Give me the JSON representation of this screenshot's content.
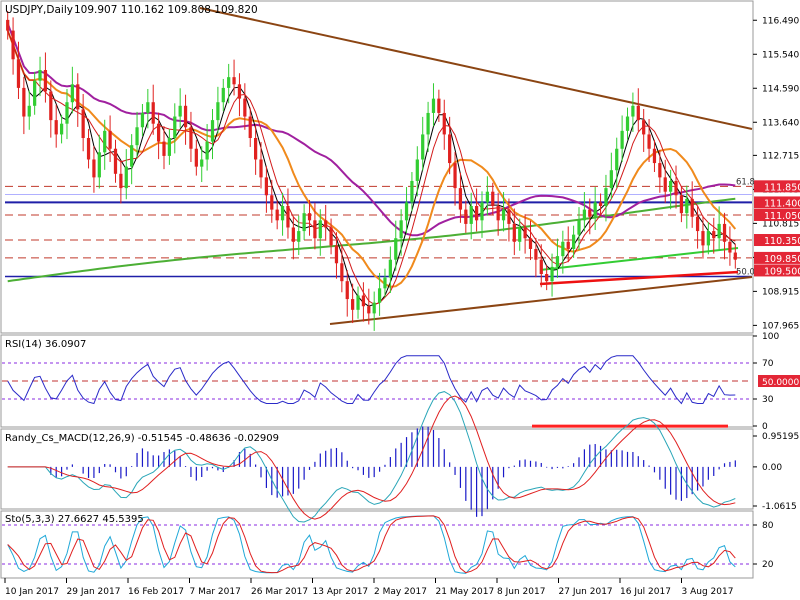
{
  "chart_data": [
    {
      "type": "candlestick",
      "symbol_title": "USDJPY,Daily",
      "ohlc_text": "109.907 110.162 109.808 109.820",
      "ohlc": {
        "open": 109.907,
        "high": 110.162,
        "low": 109.808,
        "close": 109.82
      },
      "x_ticks": [
        "10 Jan 2017",
        "29 Jan 2017",
        "16 Feb 2017",
        "7 Mar 2017",
        "26 Mar 2017",
        "13 Apr 2017",
        "2 May 2017",
        "21 May 2017",
        "8 Jun 2017",
        "27 Jun 2017",
        "16 Jul 2017",
        "3 Aug 2017"
      ],
      "y_ticks": [
        "116.490",
        "115.540",
        "114.590",
        "113.640",
        "112.715",
        "111.765",
        "110.815",
        "109.865",
        "108.915",
        "107.965"
      ],
      "ylim": [
        107.78,
        117.0
      ],
      "closes": [
        116.2,
        115.4,
        114.6,
        113.8,
        114.1,
        114.8,
        115.1,
        114.5,
        113.7,
        113.3,
        113.6,
        114.2,
        114.7,
        114.0,
        113.2,
        112.6,
        112.1,
        112.8,
        113.4,
        112.9,
        112.2,
        111.8,
        112.4,
        113.0,
        113.5,
        113.9,
        114.2,
        113.6,
        113.1,
        112.7,
        113.2,
        113.8,
        114.1,
        113.5,
        112.9,
        112.4,
        112.6,
        113.1,
        113.7,
        114.2,
        114.6,
        114.9,
        114.7,
        114.3,
        113.8,
        113.2,
        112.6,
        112.1,
        111.6,
        111.2,
        110.9,
        111.3,
        110.7,
        110.3,
        110.6,
        111.1,
        110.9,
        110.4,
        110.9,
        110.7,
        110.2,
        109.7,
        109.2,
        108.7,
        108.4,
        108.8,
        108.5,
        108.3,
        108.6,
        109.0,
        109.3,
        109.8,
        110.4,
        110.9,
        111.4,
        112.0,
        112.6,
        113.3,
        113.9,
        114.3,
        113.9,
        113.3,
        112.5,
        111.8,
        111.2,
        110.8,
        111.3,
        110.9,
        111.4,
        111.7,
        111.3,
        110.9,
        111.2,
        110.8,
        110.3,
        110.7,
        110.4,
        110.1,
        109.8,
        109.4,
        109.2,
        109.6,
        109.9,
        110.3,
        110.1,
        110.5,
        110.9,
        111.2,
        111.0,
        111.4,
        111.3,
        111.8,
        112.3,
        112.9,
        113.4,
        113.8,
        114.1,
        113.7,
        113.3,
        112.9,
        112.5,
        112.1,
        111.7,
        112.0,
        111.6,
        111.1,
        111.5,
        111.0,
        110.6,
        110.2,
        110.6,
        110.4,
        110.8,
        110.3,
        110.0,
        109.8
      ]
    },
    {
      "type": "line",
      "title": "RSI(14) 36.0907",
      "y_ticks": [
        "100",
        "70",
        "50.0000",
        "30",
        "0"
      ],
      "ylim": [
        0,
        100
      ],
      "levels": [
        70,
        50,
        30
      ]
    },
    {
      "type": "line",
      "title": "Randy_Cs_MACD(12,26,9) -0.51545 -0.48636 -0.02909",
      "y_ticks": [
        "0.95195",
        "0.00",
        "-1.0615"
      ],
      "ylim": [
        -1.0615,
        0.95195
      ]
    },
    {
      "type": "line",
      "title": "Sto(5,3,3) 27.6627 45.5395",
      "y_ticks": [
        "80",
        "20"
      ],
      "ylim": [
        0,
        100
      ],
      "levels": [
        80,
        20
      ]
    }
  ],
  "price_tags": [
    {
      "text": "111.850",
      "price": 111.85,
      "color": "#e32636"
    },
    {
      "text": "111.400",
      "price": 111.4,
      "color": "#e32636"
    },
    {
      "text": "111.050",
      "price": 111.05,
      "color": "#e32636"
    },
    {
      "text": "110.350",
      "price": 110.35,
      "color": "#e32636"
    },
    {
      "text": "109.850",
      "price": 109.85,
      "color": "#e32636"
    },
    {
      "text": "109.500",
      "price": 109.5,
      "color": "#e32636"
    }
  ],
  "fib_labels": [
    {
      "text": "61.8",
      "price": 111.85
    },
    {
      "text": "50.0",
      "price": 109.33
    }
  ],
  "colors": {
    "up_candle": "#32cd32",
    "down_candle": "#e0211f",
    "trendline": "#8b4513",
    "fib_blue": "#1f1fa8",
    "dashed_red": "#c0392b",
    "ma_green": "#4caf35",
    "ma_purple": "#a0209f",
    "ma_orange": "#f08a1c",
    "ma_black": "#000000",
    "ma_red": "#d21a1a",
    "rsi_line": "#2a2ac8",
    "macd_signal": "#e02020",
    "macd_main": "#2aa6b8",
    "histogram": "#1a1ac8",
    "sto_main": "#20a8d8",
    "sto_signal": "#e02020",
    "level_purple": "#8a2be2"
  }
}
